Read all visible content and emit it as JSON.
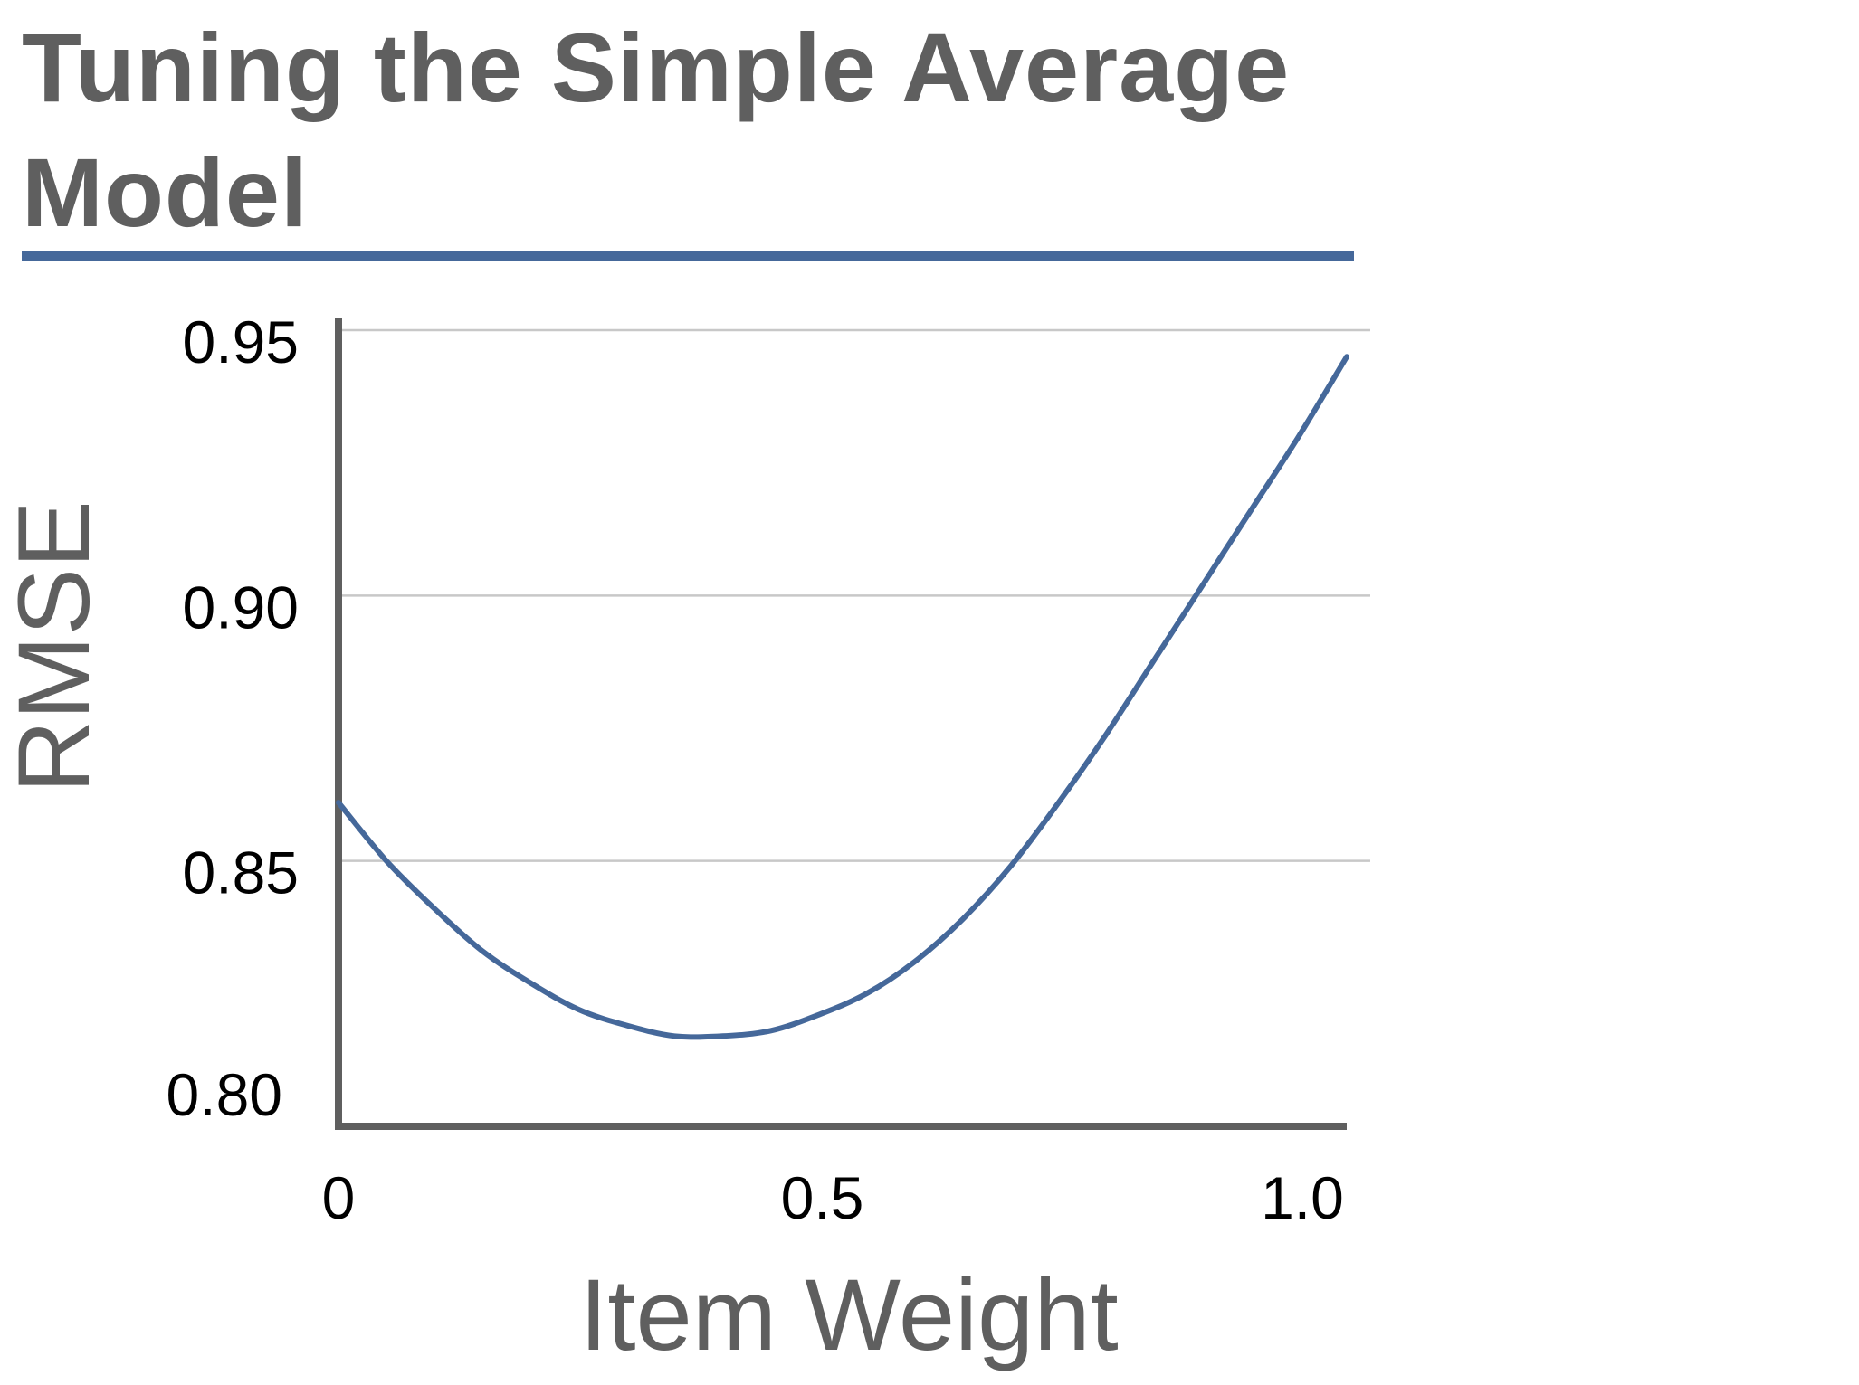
{
  "slide": {
    "title": "Tuning the Simple Average Model"
  },
  "colors": {
    "title_text": "#5f5f5f",
    "accent_rule": "#45689a",
    "series_line": "#45689a",
    "axis": "#5f5f5f",
    "gridline": "#c8c8c8"
  },
  "chart_data": {
    "type": "line",
    "title": "",
    "xlabel": "Item Weight",
    "ylabel": "RMSE",
    "xlim": [
      0,
      1.05
    ],
    "ylim": [
      0.8,
      0.95
    ],
    "grid": true,
    "legend": "none",
    "x_ticks": [
      {
        "value": 0,
        "label": "0"
      },
      {
        "value": 0.5,
        "label": "0.5"
      },
      {
        "value": 1.0,
        "label": "1.0"
      }
    ],
    "y_ticks": [
      {
        "value": 0.8,
        "label": "0.80"
      },
      {
        "value": 0.85,
        "label": "0.85"
      },
      {
        "value": 0.9,
        "label": "0.90"
      },
      {
        "value": 0.95,
        "label": "0.95"
      }
    ],
    "series": [
      {
        "x": [
          0,
          0.05,
          0.1,
          0.15,
          0.2,
          0.25,
          0.3,
          0.35,
          0.4,
          0.45,
          0.5,
          0.55,
          0.6,
          0.65,
          0.7,
          0.75,
          0.8,
          0.85,
          0.9,
          0.95,
          1.0,
          1.05
        ],
        "y": [
          0.861,
          0.85,
          0.841,
          0.833,
          0.827,
          0.822,
          0.819,
          0.817,
          0.817,
          0.818,
          0.821,
          0.825,
          0.831,
          0.839,
          0.849,
          0.861,
          0.874,
          0.888,
          0.902,
          0.916,
          0.93,
          0.945
        ]
      }
    ]
  }
}
